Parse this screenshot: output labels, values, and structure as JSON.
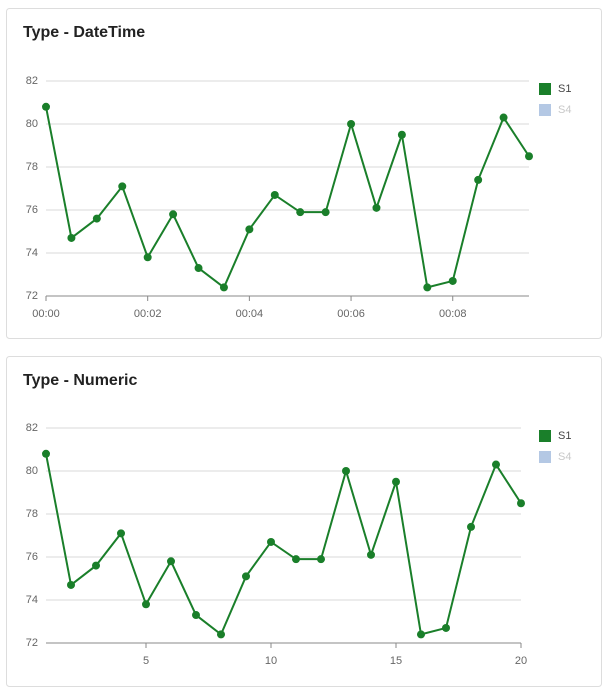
{
  "chart_data": [
    {
      "type": "line",
      "title": "Type - DateTime",
      "x": [
        0,
        0.5,
        1,
        1.5,
        2,
        2.5,
        3,
        3.5,
        4,
        4.5,
        5,
        5.5,
        6,
        6.5,
        7,
        7.5,
        8,
        8.5,
        9,
        9.5
      ],
      "xlim": [
        0,
        9.5
      ],
      "xticks": [
        {
          "value": 0,
          "label": "00:00"
        },
        {
          "value": 2,
          "label": "00:02"
        },
        {
          "value": 4,
          "label": "00:04"
        },
        {
          "value": 6,
          "label": "00:06"
        },
        {
          "value": 8,
          "label": "00:08"
        }
      ],
      "ylim": [
        72,
        82
      ],
      "yticks": [
        72,
        74,
        76,
        78,
        80,
        82
      ],
      "grid": true,
      "legend": "right",
      "series": [
        {
          "name": "S1",
          "color": "#1a7f2a",
          "values": [
            80.8,
            74.7,
            75.6,
            77.1,
            73.8,
            75.8,
            73.3,
            72.4,
            75.1,
            76.7,
            75.9,
            75.9,
            80.0,
            76.1,
            79.5,
            72.4,
            72.7,
            77.4,
            80.3,
            78.5
          ]
        },
        {
          "name": "S4",
          "color": "#b4c8e4",
          "hidden": true,
          "values": [
            null,
            null,
            null,
            null,
            null,
            null,
            null,
            null,
            null,
            null,
            null,
            null,
            null,
            null,
            null,
            null,
            null,
            null,
            null,
            null
          ]
        }
      ]
    },
    {
      "type": "line",
      "title": "Type - Numeric",
      "x": [
        1,
        2,
        3,
        4,
        5,
        6,
        7,
        8,
        9,
        10,
        11,
        12,
        13,
        14,
        15,
        16,
        17,
        18,
        19,
        20
      ],
      "xlim": [
        1,
        20
      ],
      "xticks": [
        5,
        10,
        15,
        20
      ],
      "ylim": [
        72,
        82
      ],
      "yticks": [
        72,
        74,
        76,
        78,
        80,
        82
      ],
      "grid": true,
      "legend": "right",
      "series": [
        {
          "name": "S1",
          "color": "#1a7f2a",
          "values": [
            80.8,
            74.7,
            75.6,
            77.1,
            73.8,
            75.8,
            73.3,
            72.4,
            75.1,
            76.7,
            75.9,
            75.9,
            80.0,
            76.1,
            79.5,
            72.4,
            72.7,
            77.4,
            80.3,
            78.5
          ]
        },
        {
          "name": "S4",
          "color": "#b4c8e4",
          "hidden": true,
          "values": [
            null,
            null,
            null,
            null,
            null,
            null,
            null,
            null,
            null,
            null,
            null,
            null,
            null,
            null,
            null,
            null,
            null,
            null,
            null,
            null
          ]
        }
      ]
    }
  ]
}
